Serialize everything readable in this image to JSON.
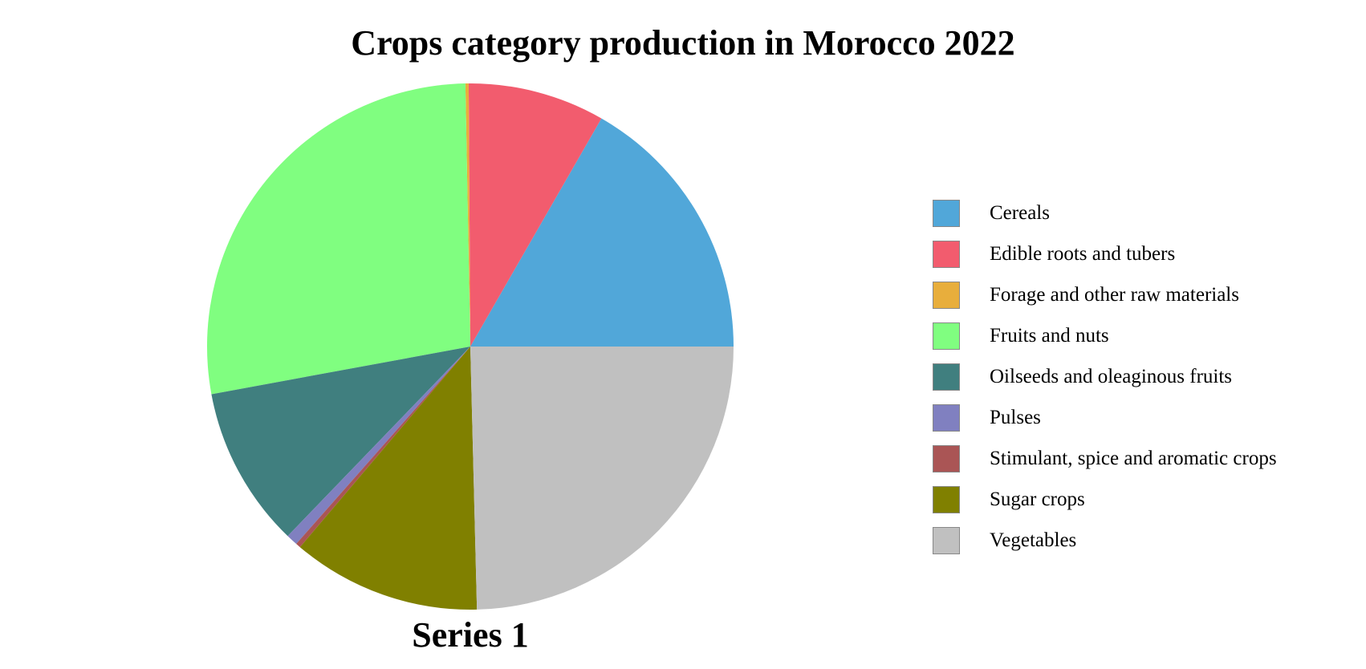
{
  "chart_data": {
    "type": "pie",
    "title": "Crops category production in Morocco 2022",
    "series_name": "Series 1",
    "legend_position": "right",
    "start_angle_note": "slices begin at 3 o'clock and proceed counter-clockwise",
    "slices": [
      {
        "label": "Cereals",
        "value": 16.7,
        "color": "#51a7d9"
      },
      {
        "label": "Edible roots and tubers",
        "value": 8.4,
        "color": "#f25c6e"
      },
      {
        "label": "Forage and other raw materials",
        "value": 0.2,
        "color": "#e8ae3c"
      },
      {
        "label": "Fruits and nuts",
        "value": 27.6,
        "color": "#80fe80"
      },
      {
        "label": "Oilseeds and oleaginous fruits",
        "value": 9.9,
        "color": "#407f7f"
      },
      {
        "label": "Pulses",
        "value": 0.7,
        "color": "#8080c0"
      },
      {
        "label": "Stimulant, spice and aromatic crops",
        "value": 0.3,
        "color": "#aa5555"
      },
      {
        "label": "Sugar crops",
        "value": 11.6,
        "color": "#808000"
      },
      {
        "label": "Vegetables",
        "value": 24.6,
        "color": "#c0c0c0"
      }
    ]
  }
}
